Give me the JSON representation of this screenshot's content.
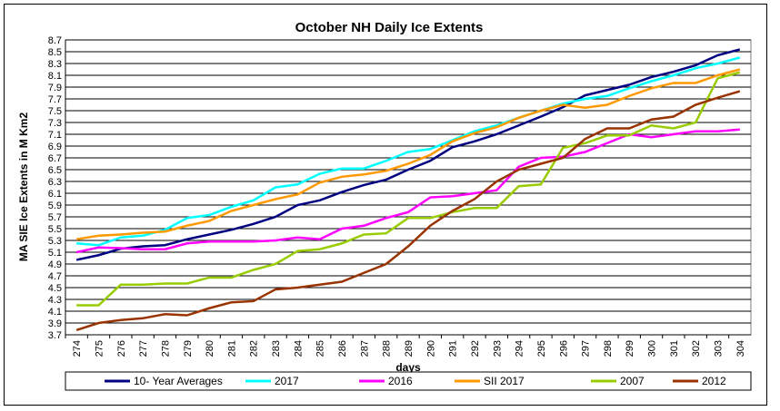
{
  "chart_data": {
    "type": "line",
    "title": "October NH Daily  Ice Extents",
    "xlabel": "days",
    "ylabel": "MA SIE Ice Extents in M Km2",
    "ylim": [
      3.7,
      8.7
    ],
    "yticks": [
      "3.7",
      "3.9",
      "4.1",
      "4.3",
      "4.5",
      "4.7",
      "4.9",
      "5.1",
      "5.3",
      "5.5",
      "5.7",
      "5.9",
      "6.1",
      "6.3",
      "6.5",
      "6.7",
      "6.9",
      "7.1",
      "7.3",
      "7.5",
      "7.7",
      "7.9",
      "8.1",
      "8.3",
      "8.5",
      "8.7"
    ],
    "x": [
      274,
      275,
      276,
      277,
      278,
      279,
      280,
      281,
      282,
      283,
      284,
      285,
      286,
      287,
      288,
      289,
      290,
      291,
      292,
      293,
      294,
      295,
      296,
      297,
      298,
      299,
      300,
      301,
      302,
      303,
      304
    ],
    "grid": true,
    "legend_position": "bottom",
    "series": [
      {
        "name": "10- Year Averages",
        "color": "#000080",
        "values": [
          4.97,
          5.05,
          5.16,
          5.2,
          5.22,
          5.32,
          5.4,
          5.48,
          5.58,
          5.7,
          5.9,
          5.98,
          6.12,
          6.24,
          6.33,
          6.5,
          6.65,
          6.88,
          6.98,
          7.1,
          7.25,
          7.4,
          7.56,
          7.76,
          7.85,
          7.94,
          8.07,
          8.16,
          8.27,
          8.44,
          8.54
        ]
      },
      {
        "name": "2017",
        "color": "#00FFFF",
        "values": [
          5.25,
          5.22,
          5.35,
          5.38,
          5.48,
          5.68,
          5.73,
          5.87,
          5.98,
          6.2,
          6.25,
          6.43,
          6.52,
          6.52,
          6.65,
          6.8,
          6.85,
          7.0,
          7.15,
          7.25,
          7.38,
          7.5,
          7.62,
          7.7,
          7.75,
          7.88,
          8.0,
          8.1,
          8.22,
          8.3,
          8.4
        ]
      },
      {
        "name": "2016",
        "color": "#FF00FF",
        "values": [
          5.1,
          5.18,
          5.17,
          5.15,
          5.15,
          5.25,
          5.28,
          5.28,
          5.28,
          5.3,
          5.35,
          5.32,
          5.5,
          5.55,
          5.68,
          5.78,
          6.03,
          6.05,
          6.1,
          6.15,
          6.55,
          6.7,
          6.72,
          6.8,
          6.95,
          7.1,
          7.05,
          7.1,
          7.15,
          7.15,
          7.18
        ]
      },
      {
        "name": "SII 2017",
        "color": "#FF9900",
        "values": [
          5.32,
          5.38,
          5.4,
          5.43,
          5.45,
          5.55,
          5.63,
          5.8,
          5.9,
          6.0,
          6.08,
          6.28,
          6.38,
          6.42,
          6.48,
          6.6,
          6.75,
          6.98,
          7.12,
          7.22,
          7.38,
          7.5,
          7.6,
          7.55,
          7.6,
          7.75,
          7.88,
          7.97,
          7.97,
          8.1,
          8.2
        ]
      },
      {
        "name": "2007",
        "color": "#99CC00",
        "values": [
          4.2,
          4.2,
          4.55,
          4.55,
          4.57,
          4.57,
          4.67,
          4.67,
          4.8,
          4.9,
          5.12,
          5.15,
          5.25,
          5.4,
          5.42,
          5.68,
          5.68,
          5.78,
          5.85,
          5.85,
          6.22,
          6.25,
          6.87,
          6.95,
          7.08,
          7.08,
          7.25,
          7.2,
          7.3,
          8.05,
          8.15
        ]
      },
      {
        "name": "2012",
        "color": "#993300",
        "values": [
          3.78,
          3.9,
          3.95,
          3.98,
          4.05,
          4.03,
          4.15,
          4.25,
          4.27,
          4.47,
          4.5,
          4.55,
          4.6,
          4.75,
          4.9,
          5.2,
          5.55,
          5.8,
          6.0,
          6.3,
          6.5,
          6.6,
          6.7,
          7.02,
          7.2,
          7.2,
          7.35,
          7.4,
          7.6,
          7.72,
          7.83
        ]
      }
    ]
  }
}
